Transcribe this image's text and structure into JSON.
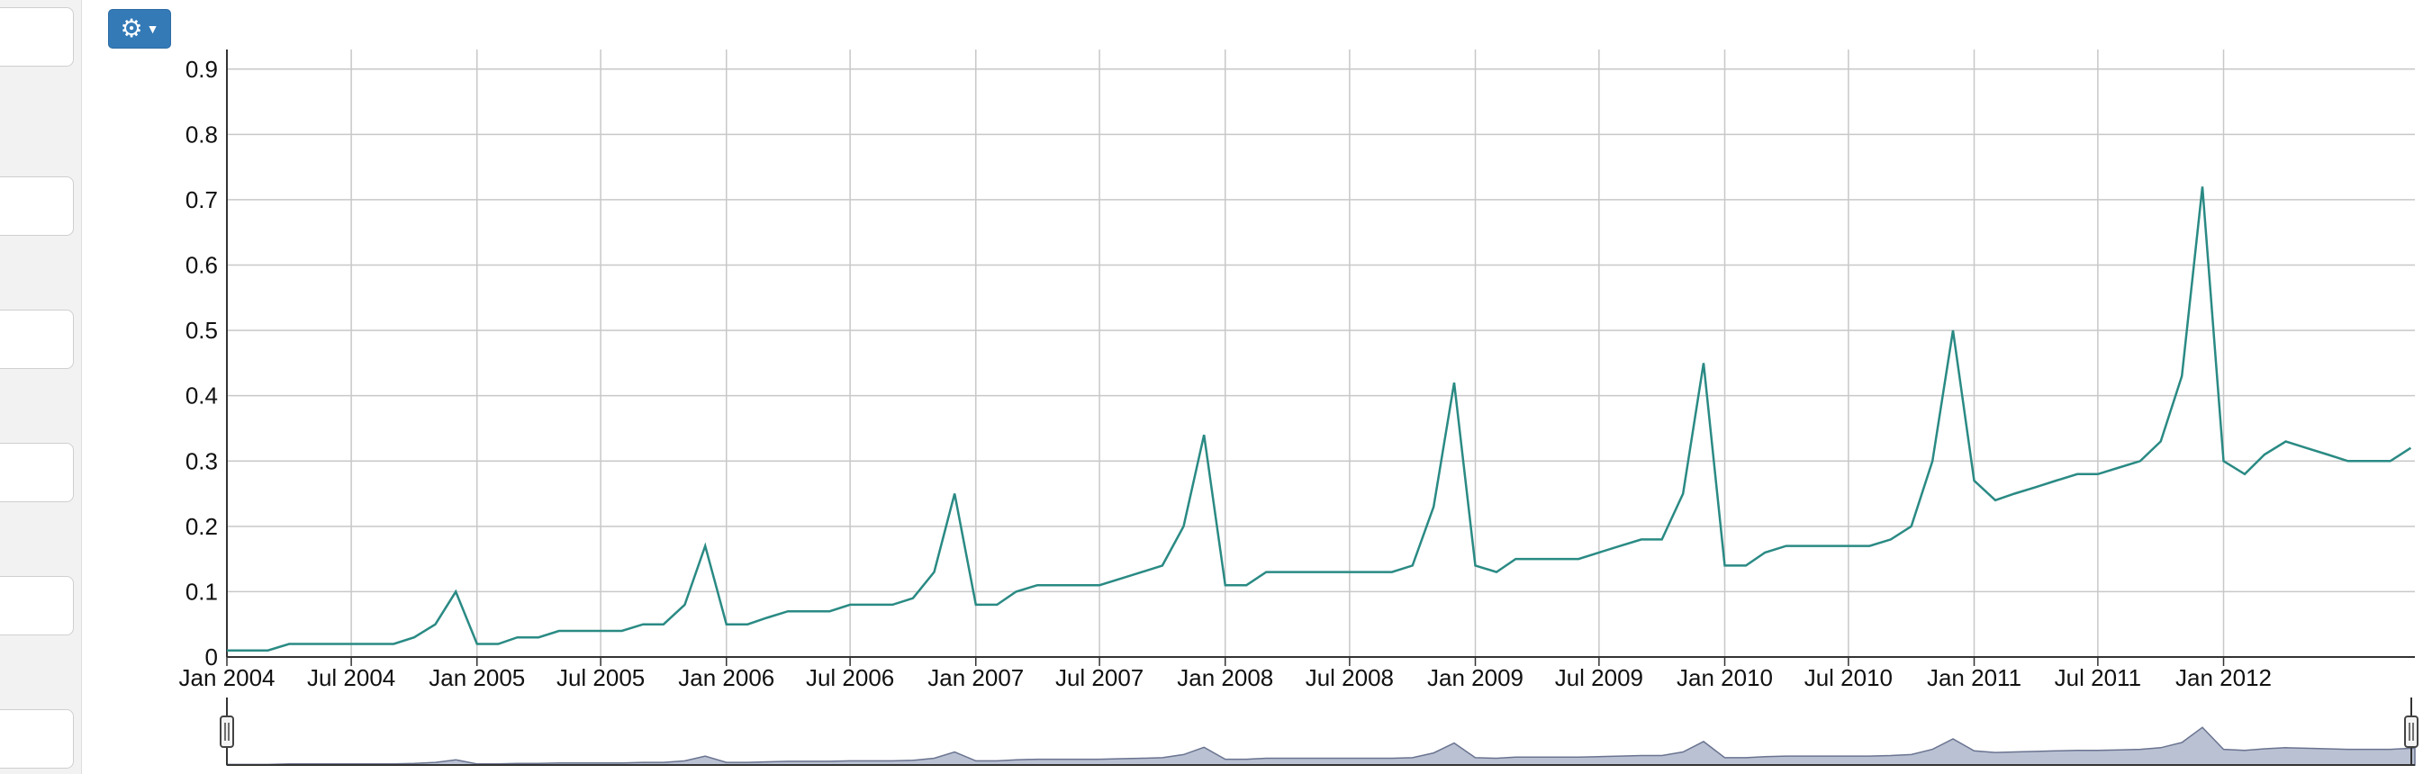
{
  "toolbar": {
    "settings_icon": "gear-icon",
    "dropdown_icon": "caret-down-icon"
  },
  "colors": {
    "line": "#2a8a84",
    "grid": "#c8c8c8",
    "navigator_fill": "#b9c1d3",
    "navigator_stroke": "#6a7490",
    "button": "#337ab7"
  },
  "chart_data": {
    "type": "line",
    "title": "",
    "xlabel": "",
    "ylabel": "",
    "ylim": [
      0,
      0.93
    ],
    "yticks": [
      0,
      0.1,
      0.2,
      0.3,
      0.4,
      0.5,
      0.6,
      0.7,
      0.8,
      0.9
    ],
    "ytick_labels": [
      "0",
      "0.1",
      "0.2",
      "0.3",
      "0.4",
      "0.5",
      "0.6",
      "0.7",
      "0.8",
      "0.9"
    ],
    "xlim": [
      "2004-01-01",
      "2012-10-07"
    ],
    "xtick_labels": [
      {
        "date": "2004-01-01",
        "label": "Jan 2004"
      },
      {
        "date": "2004-07-01",
        "label": "Jul 2004"
      },
      {
        "date": "2005-01-01",
        "label": "Jan 2005"
      },
      {
        "date": "2005-07-01",
        "label": "Jul 2005"
      },
      {
        "date": "2006-01-01",
        "label": "Jan 2006"
      },
      {
        "date": "2006-07-01",
        "label": "Jul 2006"
      },
      {
        "date": "2007-01-01",
        "label": "Jan 2007"
      },
      {
        "date": "2007-07-01",
        "label": "Jul 2007"
      },
      {
        "date": "2008-01-01",
        "label": "Jan 2008"
      },
      {
        "date": "2008-07-01",
        "label": "Jul 2008"
      },
      {
        "date": "2009-01-01",
        "label": "Jan 2009"
      },
      {
        "date": "2009-07-01",
        "label": "Jul 2009"
      },
      {
        "date": "2010-01-01",
        "label": "Jan 2010"
      },
      {
        "date": "2010-07-01",
        "label": "Jul 2010"
      },
      {
        "date": "2011-01-01",
        "label": "Jan 2011"
      },
      {
        "date": "2011-07-01",
        "label": "Jul 2011"
      },
      {
        "date": "2012-01-01",
        "label": "Jan 2012"
      }
    ],
    "grid": true,
    "navigator": true,
    "series": [
      {
        "values": [
          [
            "2004-01-01",
            0.01
          ],
          [
            "2004-02-01",
            0.01
          ],
          [
            "2004-03-01",
            0.01
          ],
          [
            "2004-04-01",
            0.02
          ],
          [
            "2004-05-01",
            0.02
          ],
          [
            "2004-06-01",
            0.02
          ],
          [
            "2004-07-01",
            0.02
          ],
          [
            "2004-08-01",
            0.02
          ],
          [
            "2004-09-01",
            0.02
          ],
          [
            "2004-10-01",
            0.03
          ],
          [
            "2004-11-01",
            0.05
          ],
          [
            "2004-12-01",
            0.1
          ],
          [
            "2005-01-01",
            0.02
          ],
          [
            "2005-02-01",
            0.02
          ],
          [
            "2005-03-01",
            0.03
          ],
          [
            "2005-04-01",
            0.03
          ],
          [
            "2005-05-01",
            0.04
          ],
          [
            "2005-06-01",
            0.04
          ],
          [
            "2005-07-01",
            0.04
          ],
          [
            "2005-08-01",
            0.04
          ],
          [
            "2005-09-01",
            0.05
          ],
          [
            "2005-10-01",
            0.05
          ],
          [
            "2005-11-01",
            0.08
          ],
          [
            "2005-12-01",
            0.17
          ],
          [
            "2006-01-01",
            0.05
          ],
          [
            "2006-02-01",
            0.05
          ],
          [
            "2006-03-01",
            0.06
          ],
          [
            "2006-04-01",
            0.07
          ],
          [
            "2006-05-01",
            0.07
          ],
          [
            "2006-06-01",
            0.07
          ],
          [
            "2006-07-01",
            0.08
          ],
          [
            "2006-08-01",
            0.08
          ],
          [
            "2006-09-01",
            0.08
          ],
          [
            "2006-10-01",
            0.09
          ],
          [
            "2006-11-01",
            0.13
          ],
          [
            "2006-12-01",
            0.25
          ],
          [
            "2007-01-01",
            0.08
          ],
          [
            "2007-02-01",
            0.08
          ],
          [
            "2007-03-01",
            0.1
          ],
          [
            "2007-04-01",
            0.11
          ],
          [
            "2007-05-01",
            0.11
          ],
          [
            "2007-06-01",
            0.11
          ],
          [
            "2007-07-01",
            0.11
          ],
          [
            "2007-08-01",
            0.12
          ],
          [
            "2007-09-01",
            0.13
          ],
          [
            "2007-10-01",
            0.14
          ],
          [
            "2007-11-01",
            0.2
          ],
          [
            "2007-12-01",
            0.34
          ],
          [
            "2008-01-01",
            0.11
          ],
          [
            "2008-02-01",
            0.11
          ],
          [
            "2008-03-01",
            0.13
          ],
          [
            "2008-04-01",
            0.13
          ],
          [
            "2008-05-01",
            0.13
          ],
          [
            "2008-06-01",
            0.13
          ],
          [
            "2008-07-01",
            0.13
          ],
          [
            "2008-08-01",
            0.13
          ],
          [
            "2008-09-01",
            0.13
          ],
          [
            "2008-10-01",
            0.14
          ],
          [
            "2008-11-01",
            0.23
          ],
          [
            "2008-12-01",
            0.42
          ],
          [
            "2009-01-01",
            0.14
          ],
          [
            "2009-02-01",
            0.13
          ],
          [
            "2009-03-01",
            0.15
          ],
          [
            "2009-04-01",
            0.15
          ],
          [
            "2009-05-01",
            0.15
          ],
          [
            "2009-06-01",
            0.15
          ],
          [
            "2009-07-01",
            0.16
          ],
          [
            "2009-08-01",
            0.17
          ],
          [
            "2009-09-01",
            0.18
          ],
          [
            "2009-10-01",
            0.18
          ],
          [
            "2009-11-01",
            0.25
          ],
          [
            "2009-12-01",
            0.45
          ],
          [
            "2010-01-01",
            0.14
          ],
          [
            "2010-02-01",
            0.14
          ],
          [
            "2010-03-01",
            0.16
          ],
          [
            "2010-04-01",
            0.17
          ],
          [
            "2010-05-01",
            0.17
          ],
          [
            "2010-06-01",
            0.17
          ],
          [
            "2010-07-01",
            0.17
          ],
          [
            "2010-08-01",
            0.17
          ],
          [
            "2010-09-01",
            0.18
          ],
          [
            "2010-10-01",
            0.2
          ],
          [
            "2010-11-01",
            0.3
          ],
          [
            "2010-12-01",
            0.5
          ],
          [
            "2011-01-01",
            0.27
          ],
          [
            "2011-02-01",
            0.24
          ],
          [
            "2011-03-01",
            0.25
          ],
          [
            "2011-04-01",
            0.26
          ],
          [
            "2011-05-01",
            0.27
          ],
          [
            "2011-06-01",
            0.28
          ],
          [
            "2011-07-01",
            0.28
          ],
          [
            "2011-08-01",
            0.29
          ],
          [
            "2011-09-01",
            0.3
          ],
          [
            "2011-10-01",
            0.33
          ],
          [
            "2011-11-01",
            0.43
          ],
          [
            "2011-12-01",
            0.72
          ],
          [
            "2012-01-01",
            0.3
          ],
          [
            "2012-02-01",
            0.28
          ],
          [
            "2012-03-01",
            0.31
          ],
          [
            "2012-04-01",
            0.33
          ],
          [
            "2012-05-01",
            0.32
          ],
          [
            "2012-06-01",
            0.31
          ],
          [
            "2012-07-01",
            0.3
          ],
          [
            "2012-08-01",
            0.3
          ],
          [
            "2012-09-01",
            0.3
          ],
          [
            "2012-10-01",
            0.32
          ]
        ]
      }
    ]
  }
}
